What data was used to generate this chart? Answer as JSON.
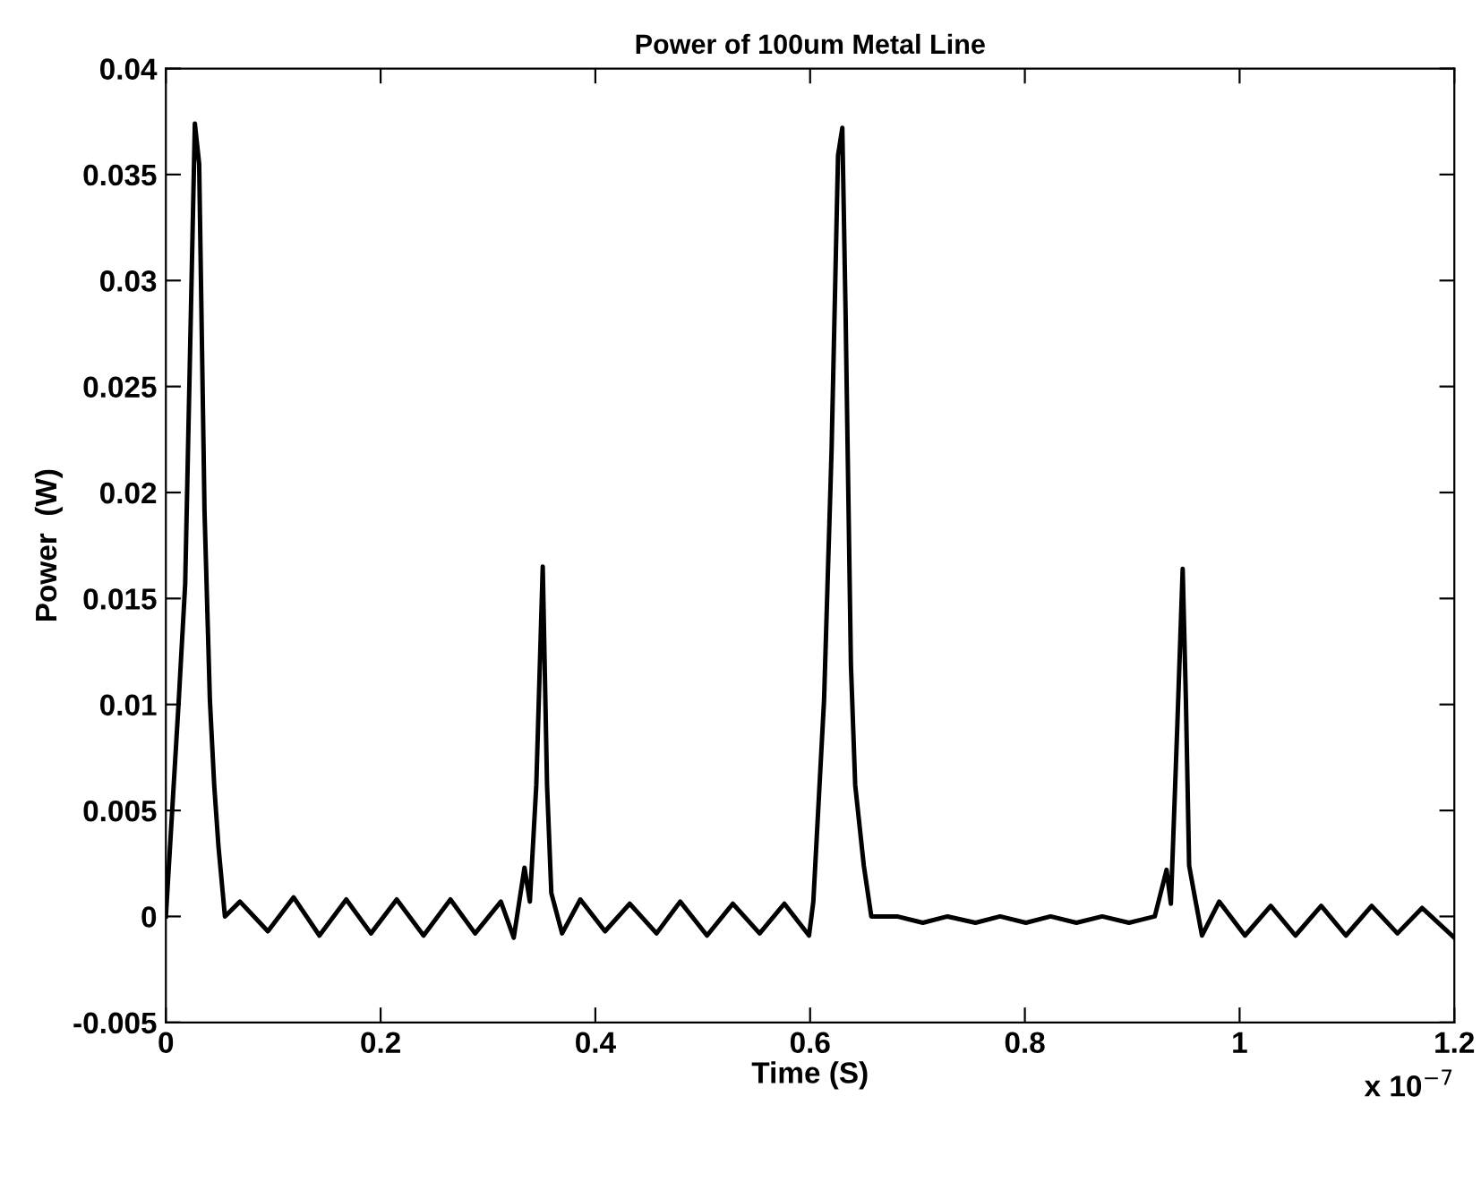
{
  "chart_data": {
    "type": "line",
    "title": "Power of 100um Metal Line",
    "xlabel": "Time (S)",
    "ylabel": "Power  (W)",
    "annotations": [
      "x 10$^{−7}$"
    ],
    "series": [
      {
        "color": "#000000",
        "x": [
          0,
          0.012,
          0.018,
          0.027,
          0.031,
          0.036,
          0.041,
          0.045,
          0.049,
          0.055,
          0.069,
          0.095,
          0.119,
          0.143,
          0.168,
          0.191,
          0.215,
          0.24,
          0.265,
          0.288,
          0.312,
          0.324,
          0.334,
          0.339,
          0.345,
          0.351,
          0.355,
          0.359,
          0.369,
          0.386,
          0.409,
          0.432,
          0.457,
          0.479,
          0.504,
          0.528,
          0.553,
          0.576,
          0.599,
          0.603,
          0.613,
          0.62,
          0.626,
          0.63,
          0.633,
          0.638,
          0.642,
          0.65,
          0.657,
          0.681,
          0.705,
          0.728,
          0.754,
          0.777,
          0.801,
          0.824,
          0.848,
          0.872,
          0.897,
          0.921,
          0.932,
          0.936,
          0.942,
          0.947,
          0.95,
          0.953,
          0.958,
          0.965,
          0.981,
          1.005,
          1.029,
          1.052,
          1.076,
          1.099,
          1.123,
          1.147,
          1.17,
          1.2
        ],
        "values": [
          0,
          0.0102,
          0.0157,
          0.0374,
          0.0355,
          0.0191,
          0.0102,
          0.0062,
          0.0033,
          0,
          0.0007,
          -0.0007,
          0.0009,
          -0.0009,
          0.0008,
          -0.0008,
          0.0008,
          -0.0009,
          0.0008,
          -0.0008,
          0.0007,
          -0.001,
          0.0023,
          0.0007,
          0.0062,
          0.0165,
          0.0062,
          0.0011,
          -0.0008,
          0.0008,
          -0.0007,
          0.0006,
          -0.0008,
          0.0007,
          -0.0009,
          0.0006,
          -0.0008,
          0.0006,
          -0.0009,
          0.0007,
          0.0102,
          0.022,
          0.0359,
          0.0372,
          0.0286,
          0.0119,
          0.0062,
          0.0024,
          0,
          0,
          -0.0003,
          0,
          -0.0003,
          0,
          -0.0003,
          0,
          -0.0003,
          0,
          -0.0003,
          0,
          0.0022,
          0.0006,
          0.009,
          0.0164,
          0.0102,
          0.0024,
          0.001,
          -0.0009,
          0.0007,
          -0.0009,
          0.0005,
          -0.0009,
          0.0005,
          -0.0009,
          0.0005,
          -0.0008,
          0.0004,
          -0.001
        ]
      }
    ],
    "xlim": [
      0,
      1.2
    ],
    "xticks": [
      0,
      0.2,
      0.4,
      0.6,
      0.8,
      1,
      1.2
    ],
    "ylim": [
      -0.005,
      0.04
    ],
    "yticks": [
      -0.005,
      0,
      0.005,
      0.01,
      0.015,
      0.02,
      0.025,
      0.03,
      0.035,
      0.04
    ],
    "grid": false,
    "legend": false,
    "marker": "none",
    "line_style": "solid"
  }
}
